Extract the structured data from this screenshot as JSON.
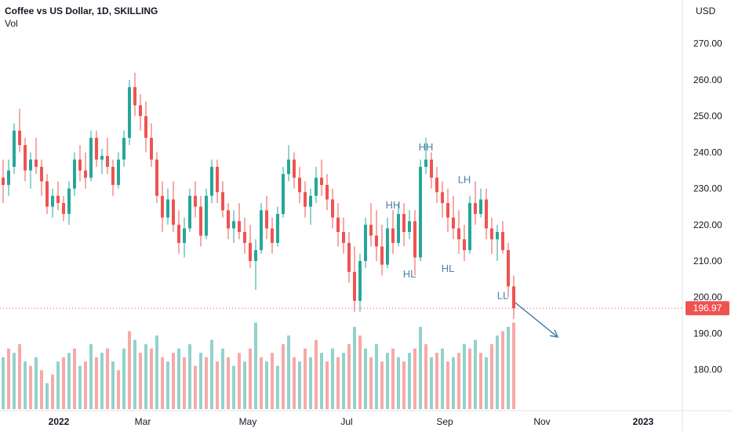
{
  "header": {
    "title": "Coffee vs US Dollar, 1D, SKILLING",
    "volume_label": "Vol"
  },
  "colors": {
    "up": "#26a69a",
    "down": "#ef5350",
    "vol_up": "#92d2cc",
    "vol_down": "#f7a9a7",
    "annotation": "#4a7fa7",
    "price_line": "#ef5350",
    "grid": "#f0f3fa"
  },
  "chart_data": {
    "type": "candlestick",
    "currency": "USD",
    "ylim": [
      173,
      276
    ],
    "y_ticks": [
      "270.00",
      "260.00",
      "250.00",
      "240.00",
      "230.00",
      "220.00",
      "210.00",
      "200.00",
      "190.00",
      "180.00"
    ],
    "y_tick_values": [
      270,
      260,
      250,
      240,
      230,
      220,
      210,
      200,
      190,
      180
    ],
    "x_ticks": [
      "2022",
      "Mar",
      "May",
      "Jul",
      "Sep",
      "Nov",
      "2023"
    ],
    "last_price": "196.97",
    "last_price_value": 196.97,
    "candles": [
      [
        233,
        238,
        226,
        231
      ],
      [
        231,
        238,
        228,
        235
      ],
      [
        236,
        248,
        234,
        246
      ],
      [
        246,
        252,
        240,
        242
      ],
      [
        242,
        244,
        232,
        235
      ],
      [
        235,
        240,
        230,
        238
      ],
      [
        238,
        244,
        234,
        236
      ],
      [
        236,
        238,
        228,
        232
      ],
      [
        232,
        234,
        223,
        225
      ],
      [
        225,
        230,
        222,
        228
      ],
      [
        228,
        232,
        224,
        226
      ],
      [
        226,
        228,
        221,
        223
      ],
      [
        223,
        232,
        220,
        230
      ],
      [
        230,
        240,
        228,
        238
      ],
      [
        238,
        242,
        232,
        235
      ],
      [
        235,
        240,
        230,
        233
      ],
      [
        233,
        246,
        232,
        244
      ],
      [
        244,
        246,
        236,
        238
      ],
      [
        238,
        241,
        234,
        239
      ],
      [
        239,
        244,
        234,
        236
      ],
      [
        236,
        238,
        228,
        231
      ],
      [
        231,
        240,
        230,
        238
      ],
      [
        238,
        246,
        236,
        244
      ],
      [
        244,
        260,
        242,
        258
      ],
      [
        258,
        262,
        250,
        253
      ],
      [
        253,
        256,
        246,
        250
      ],
      [
        250,
        254,
        240,
        244
      ],
      [
        244,
        248,
        236,
        238
      ],
      [
        238,
        240,
        226,
        228
      ],
      [
        228,
        232,
        218,
        222
      ],
      [
        222,
        230,
        220,
        227
      ],
      [
        227,
        232,
        218,
        220
      ],
      [
        220,
        224,
        212,
        215
      ],
      [
        215,
        222,
        211,
        219
      ],
      [
        219,
        230,
        218,
        228
      ],
      [
        228,
        232,
        222,
        225
      ],
      [
        225,
        228,
        214,
        217
      ],
      [
        217,
        230,
        216,
        228
      ],
      [
        228,
        238,
        226,
        236
      ],
      [
        236,
        238,
        226,
        229
      ],
      [
        229,
        232,
        222,
        224
      ],
      [
        224,
        226,
        216,
        219
      ],
      [
        219,
        224,
        215,
        221
      ],
      [
        221,
        226,
        216,
        218
      ],
      [
        218,
        222,
        212,
        215
      ],
      [
        215,
        220,
        208,
        210
      ],
      [
        210,
        216,
        202,
        213
      ],
      [
        213,
        226,
        212,
        224
      ],
      [
        224,
        228,
        216,
        219
      ],
      [
        219,
        222,
        212,
        215
      ],
      [
        215,
        225,
        214,
        223
      ],
      [
        223,
        236,
        222,
        234
      ],
      [
        234,
        242,
        232,
        238
      ],
      [
        238,
        240,
        230,
        233
      ],
      [
        233,
        236,
        226,
        229
      ],
      [
        229,
        232,
        222,
        225
      ],
      [
        225,
        230,
        220,
        228
      ],
      [
        228,
        236,
        226,
        233
      ],
      [
        233,
        238,
        228,
        231
      ],
      [
        231,
        234,
        224,
        227
      ],
      [
        227,
        230,
        219,
        222
      ],
      [
        222,
        226,
        214,
        218
      ],
      [
        218,
        222,
        212,
        215
      ],
      [
        215,
        218,
        204,
        207
      ],
      [
        207,
        214,
        196,
        199
      ],
      [
        199,
        212,
        196,
        210
      ],
      [
        210,
        222,
        208,
        220
      ],
      [
        220,
        226,
        214,
        217
      ],
      [
        217,
        224,
        210,
        214
      ],
      [
        214,
        220,
        206,
        209
      ],
      [
        209,
        222,
        208,
        219
      ],
      [
        219,
        224,
        212,
        215
      ],
      [
        215,
        226,
        214,
        223
      ],
      [
        223,
        226,
        214,
        218
      ],
      [
        218,
        224,
        216,
        221
      ],
      [
        221,
        224,
        206,
        211
      ],
      [
        211,
        238,
        210,
        236
      ],
      [
        236,
        244,
        234,
        238
      ],
      [
        238,
        240,
        230,
        233
      ],
      [
        233,
        236,
        226,
        229
      ],
      [
        229,
        232,
        222,
        226
      ],
      [
        226,
        230,
        218,
        222
      ],
      [
        222,
        228,
        216,
        219
      ],
      [
        219,
        224,
        212,
        216
      ],
      [
        216,
        220,
        210,
        213
      ],
      [
        213,
        228,
        212,
        226
      ],
      [
        226,
        232,
        220,
        223
      ],
      [
        223,
        230,
        222,
        227
      ],
      [
        227,
        230,
        216,
        219
      ],
      [
        219,
        222,
        212,
        216
      ],
      [
        216,
        220,
        210,
        218
      ],
      [
        218,
        221,
        212,
        213
      ],
      [
        213,
        215,
        200,
        203
      ],
      [
        203,
        206,
        194,
        196.97
      ]
    ],
    "volume": [
      [
        0.6,
        "u"
      ],
      [
        0.7,
        "d"
      ],
      [
        0.65,
        "u"
      ],
      [
        0.75,
        "d"
      ],
      [
        0.55,
        "u"
      ],
      [
        0.5,
        "d"
      ],
      [
        0.6,
        "u"
      ],
      [
        0.45,
        "d"
      ],
      [
        0.3,
        "u"
      ],
      [
        0.4,
        "d"
      ],
      [
        0.55,
        "u"
      ],
      [
        0.6,
        "d"
      ],
      [
        0.65,
        "u"
      ],
      [
        0.7,
        "d"
      ],
      [
        0.5,
        "u"
      ],
      [
        0.55,
        "d"
      ],
      [
        0.75,
        "u"
      ],
      [
        0.6,
        "d"
      ],
      [
        0.65,
        "u"
      ],
      [
        0.7,
        "d"
      ],
      [
        0.55,
        "u"
      ],
      [
        0.45,
        "d"
      ],
      [
        0.7,
        "u"
      ],
      [
        0.9,
        "d"
      ],
      [
        0.8,
        "u"
      ],
      [
        0.65,
        "d"
      ],
      [
        0.75,
        "u"
      ],
      [
        0.7,
        "d"
      ],
      [
        0.85,
        "u"
      ],
      [
        0.6,
        "d"
      ],
      [
        0.55,
        "u"
      ],
      [
        0.65,
        "d"
      ],
      [
        0.7,
        "u"
      ],
      [
        0.6,
        "d"
      ],
      [
        0.75,
        "u"
      ],
      [
        0.5,
        "d"
      ],
      [
        0.65,
        "u"
      ],
      [
        0.6,
        "d"
      ],
      [
        0.8,
        "u"
      ],
      [
        0.55,
        "d"
      ],
      [
        0.7,
        "u"
      ],
      [
        0.6,
        "d"
      ],
      [
        0.5,
        "u"
      ],
      [
        0.65,
        "d"
      ],
      [
        0.55,
        "u"
      ],
      [
        0.7,
        "d"
      ],
      [
        1.0,
        "u"
      ],
      [
        0.6,
        "d"
      ],
      [
        0.55,
        "u"
      ],
      [
        0.65,
        "d"
      ],
      [
        0.5,
        "u"
      ],
      [
        0.75,
        "d"
      ],
      [
        0.85,
        "u"
      ],
      [
        0.6,
        "d"
      ],
      [
        0.55,
        "u"
      ],
      [
        0.7,
        "d"
      ],
      [
        0.6,
        "u"
      ],
      [
        0.8,
        "d"
      ],
      [
        0.65,
        "u"
      ],
      [
        0.55,
        "d"
      ],
      [
        0.7,
        "u"
      ],
      [
        0.6,
        "d"
      ],
      [
        0.65,
        "u"
      ],
      [
        0.75,
        "d"
      ],
      [
        0.95,
        "u"
      ],
      [
        0.85,
        "d"
      ],
      [
        0.7,
        "u"
      ],
      [
        0.6,
        "d"
      ],
      [
        0.75,
        "u"
      ],
      [
        0.55,
        "d"
      ],
      [
        0.65,
        "u"
      ],
      [
        0.7,
        "d"
      ],
      [
        0.6,
        "u"
      ],
      [
        0.55,
        "d"
      ],
      [
        0.65,
        "u"
      ],
      [
        0.7,
        "d"
      ],
      [
        0.95,
        "u"
      ],
      [
        0.75,
        "d"
      ],
      [
        0.6,
        "u"
      ],
      [
        0.65,
        "d"
      ],
      [
        0.7,
        "u"
      ],
      [
        0.55,
        "d"
      ],
      [
        0.6,
        "u"
      ],
      [
        0.65,
        "d"
      ],
      [
        0.75,
        "u"
      ],
      [
        0.7,
        "d"
      ],
      [
        0.8,
        "u"
      ],
      [
        0.65,
        "d"
      ],
      [
        0.6,
        "u"
      ],
      [
        0.75,
        "d"
      ],
      [
        0.85,
        "u"
      ],
      [
        0.9,
        "d"
      ],
      [
        0.95,
        "u"
      ],
      [
        1.0,
        "d"
      ]
    ],
    "annotations": [
      {
        "text": "HH",
        "candle": 77,
        "price": 240.5
      },
      {
        "text": "HH",
        "candle": 71,
        "price": 224.5
      },
      {
        "text": "HL",
        "candle": 74,
        "price": 205.5
      },
      {
        "text": "LH",
        "candle": 84,
        "price": 231.5
      },
      {
        "text": "HL",
        "candle": 81,
        "price": 207
      },
      {
        "text": "LL",
        "candle": 91,
        "price": 199.5
      }
    ],
    "arrow": {
      "from": {
        "candle": 93,
        "price": 198.5
      },
      "to_index": 101,
      "to_price": 189
    }
  }
}
